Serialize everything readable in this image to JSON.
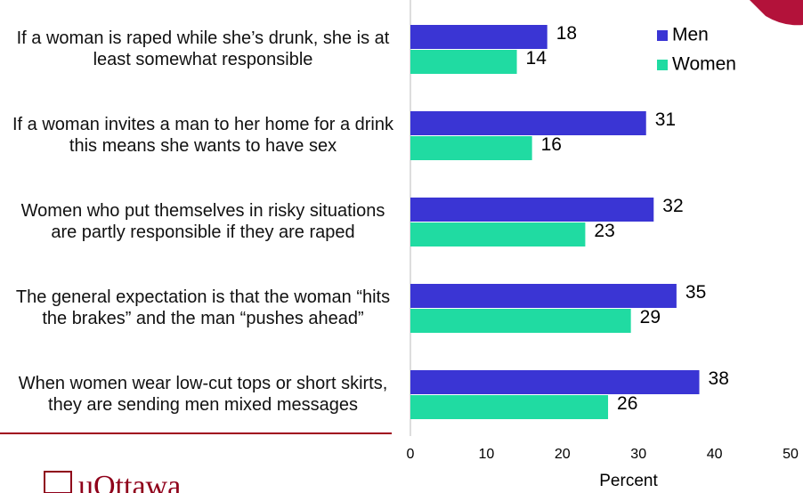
{
  "chart_data": {
    "type": "barh",
    "categories": [
      "If a woman is raped while she’s drunk, she is at least somewhat responsible",
      "If a woman invites a man to her home for a drink this means she wants to have sex",
      "Women who put themselves in risky situations are partly responsible if they are raped",
      "The general expectation is that the woman “hits the brakes” and the man “pushes ahead”",
      "When women wear low-cut tops or short skirts, they are sending men mixed messages"
    ],
    "series": [
      {
        "name": "Men",
        "color": "#3a35d4",
        "values": [
          18,
          31,
          32,
          35,
          38
        ]
      },
      {
        "name": "Women",
        "color": "#20dba2",
        "values": [
          14,
          16,
          23,
          29,
          26
        ]
      }
    ],
    "xlim": [
      0,
      50
    ],
    "xticks": [
      0,
      10,
      20,
      30,
      40,
      50
    ],
    "xlabel": "Percent",
    "legend": "top-right"
  },
  "logo": "uOttawa"
}
